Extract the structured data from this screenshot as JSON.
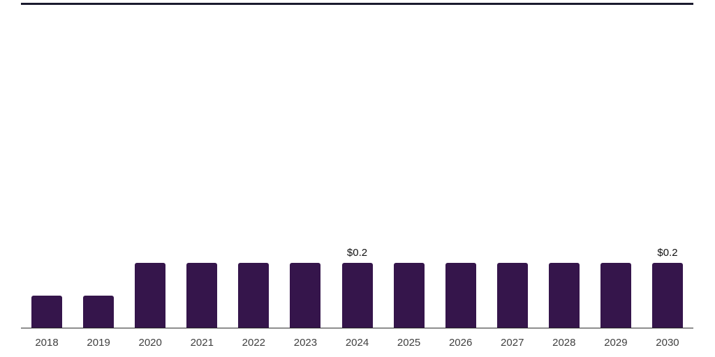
{
  "chart_data": {
    "type": "bar",
    "title": "",
    "xlabel": "",
    "ylabel": "",
    "categories": [
      "2018",
      "2019",
      "2020",
      "2021",
      "2022",
      "2023",
      "2024",
      "2025",
      "2026",
      "2027",
      "2028",
      "2029",
      "2030"
    ],
    "values": [
      0.1,
      0.1,
      0.2,
      0.2,
      0.2,
      0.2,
      0.2,
      0.2,
      0.2,
      0.2,
      0.2,
      0.2,
      0.2
    ],
    "data_labels": [
      "",
      "",
      "",
      "",
      "",
      "",
      "$0.2",
      "",
      "",
      "",
      "",
      "",
      "$0.2"
    ],
    "ylim": [
      0,
      1
    ],
    "grid": "off",
    "legend": "none",
    "notes": "Only the 2024 and 2030 bars carry visible $0.2 value labels; 2018 and 2019 bars are half the height of the others."
  },
  "colors": {
    "bar": "#35154B",
    "top_rule": "#1a1a2e",
    "baseline": "#2b2b2b",
    "tick_label": "#404040",
    "value_label": "#111111",
    "background": "#ffffff"
  }
}
